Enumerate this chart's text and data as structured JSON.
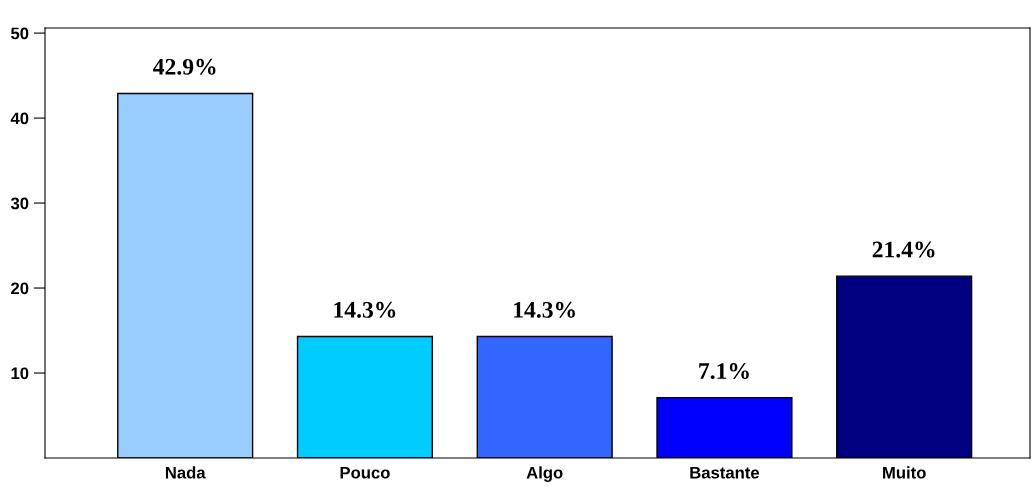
{
  "chart_data": {
    "type": "bar",
    "categories": [
      "Nada",
      "Pouco",
      "Algo",
      "Bastante",
      "Muito"
    ],
    "values": [
      42.9,
      14.3,
      14.3,
      7.1,
      21.4
    ],
    "colors": [
      "#99ccff",
      "#00ccff",
      "#3366ff",
      "#0000ff",
      "#000080"
    ],
    "value_labels": [
      "42.9%",
      "14.3%",
      "14.3%",
      "7.1%",
      "21.4%"
    ],
    "ylim": [
      0,
      50.6
    ],
    "yticks": [
      10,
      20,
      30,
      40,
      50
    ],
    "grid": false,
    "legend": false
  }
}
